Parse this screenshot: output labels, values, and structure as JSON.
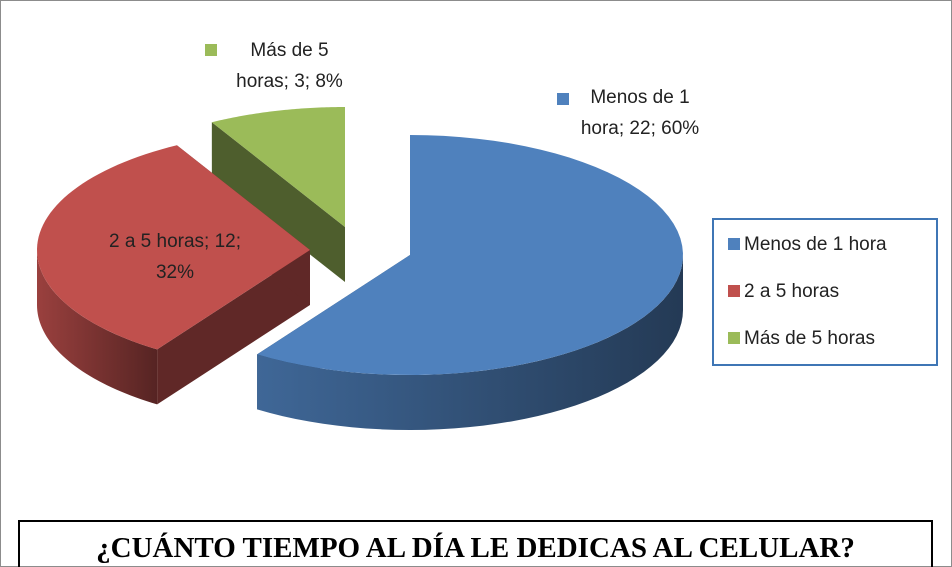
{
  "chart_data": {
    "type": "pie",
    "title": "¿CUÁNTO TIEMPO AL DÍA LE DEDICAS AL CELULAR?",
    "categories": [
      "Menos de 1 hora",
      "2 a 5 horas",
      "Más de 5 horas"
    ],
    "values": [
      22,
      12,
      3
    ],
    "value_labels": [
      "Menos de 1 hora; 22; 60%",
      "2 a 5 horas; 12; 32%",
      "Más de 5 horas; 3; 8%"
    ],
    "colors": [
      "#4f81bd",
      "#c0504d",
      "#9bbb59"
    ],
    "legend": "right"
  }
}
